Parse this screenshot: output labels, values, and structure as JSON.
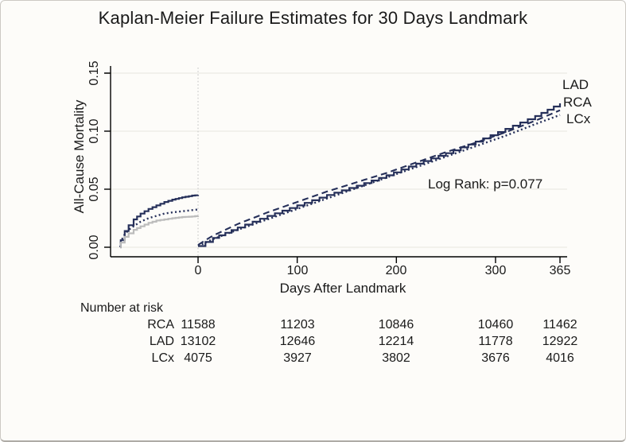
{
  "colors": {
    "title": "#232e54",
    "navy": "#26305a",
    "gray_curve": "#bcbcbc",
    "grid": "#eceae4",
    "landmark_line": "#c6c6c6",
    "axis": "#000000"
  },
  "chart_data": {
    "type": "line",
    "title": "Kaplan-Meier Failure Estimates for 30 Days Landmark",
    "xlabel": "Days After Landmark",
    "ylabel": "All-Cause Mortality",
    "x_ticks": [
      0,
      100,
      200,
      300,
      365
    ],
    "x_tick_labels": [
      "0",
      "100",
      "200",
      "300",
      "365"
    ],
    "y_ticks": [
      0.0,
      0.05,
      0.1,
      0.15
    ],
    "y_tick_labels": [
      "0.00",
      "0.05",
      "0.10",
      "0.15"
    ],
    "xlim_days": [
      -79,
      365
    ],
    "ylim": [
      0,
      0.15
    ],
    "grid": "horizontal",
    "landmark_x": 0,
    "annotation": "Log Rank: p=0.077",
    "series": [
      {
        "name": "LAD",
        "end_label": "LAD",
        "style": "solid",
        "color": "#26305a",
        "x": [
          0,
          15,
          40,
          70,
          100,
          130,
          160,
          190,
          220,
          250,
          280,
          310,
          340,
          365
        ],
        "y": [
          0.001,
          0.008,
          0.017,
          0.027,
          0.036,
          0.045,
          0.053,
          0.062,
          0.072,
          0.081,
          0.091,
          0.102,
          0.113,
          0.124
        ]
      },
      {
        "name": "RCA",
        "end_label": "RCA",
        "style": "dashed",
        "color": "#26305a",
        "x": [
          0,
          15,
          40,
          70,
          100,
          130,
          160,
          190,
          220,
          250,
          280,
          310,
          340,
          365
        ],
        "y": [
          0.002,
          0.01,
          0.02,
          0.03,
          0.039,
          0.048,
          0.056,
          0.064,
          0.073,
          0.082,
          0.09,
          0.099,
          0.109,
          0.118
        ]
      },
      {
        "name": "LCx",
        "end_label": "LCx",
        "style": "dotted",
        "color": "#26305a",
        "x": [
          0,
          15,
          40,
          70,
          100,
          130,
          160,
          190,
          220,
          250,
          280,
          310,
          340,
          365
        ],
        "y": [
          0.001,
          0.007,
          0.015,
          0.024,
          0.033,
          0.042,
          0.051,
          0.06,
          0.069,
          0.078,
          0.087,
          0.096,
          0.106,
          0.114
        ]
      }
    ],
    "pre_landmark_series": [
      {
        "name": "pre-top-solid-navy",
        "style": "solid",
        "color": "#26305a",
        "x": [
          -78.5,
          -78,
          -74,
          -70,
          -65,
          -58,
          -50,
          -42,
          -34,
          -26,
          -16,
          -6,
          0
        ],
        "y": [
          0,
          0.006,
          0.014,
          0.019,
          0.024,
          0.029,
          0.033,
          0.036,
          0.039,
          0.041,
          0.043,
          0.0445,
          0.045
        ]
      },
      {
        "name": "pre-middle-dotted-navy",
        "style": "dotted",
        "color": "#26305a",
        "x": [
          -78.5,
          -78,
          -74,
          -70,
          -65,
          -58,
          -50,
          -42,
          -34,
          -26,
          -16,
          -6,
          0
        ],
        "y": [
          0,
          0.005,
          0.011,
          0.015,
          0.018,
          0.022,
          0.025,
          0.027,
          0.029,
          0.03,
          0.031,
          0.032,
          0.0325
        ]
      },
      {
        "name": "pre-bottom-solid-gray",
        "style": "solid",
        "color": "#bcbcbc",
        "x": [
          -78.5,
          -78,
          -74,
          -70,
          -65,
          -58,
          -50,
          -42,
          -34,
          -26,
          -16,
          -6,
          0
        ],
        "y": [
          0,
          0.004,
          0.009,
          0.012,
          0.015,
          0.018,
          0.021,
          0.023,
          0.024,
          0.025,
          0.026,
          0.0265,
          0.027
        ]
      }
    ]
  },
  "risk_table": {
    "heading": "Number at risk",
    "columns_days": [
      0,
      100,
      200,
      300,
      365
    ],
    "rows": [
      {
        "label": "RCA",
        "values": [
          "11588",
          "11203",
          "10846",
          "10460",
          "11462"
        ]
      },
      {
        "label": "LAD",
        "values": [
          "13102",
          "12646",
          "12214",
          "11778",
          "12922"
        ]
      },
      {
        "label": "LCx",
        "values": [
          "4075",
          "3927",
          "3802",
          "3676",
          "4016"
        ]
      }
    ]
  }
}
